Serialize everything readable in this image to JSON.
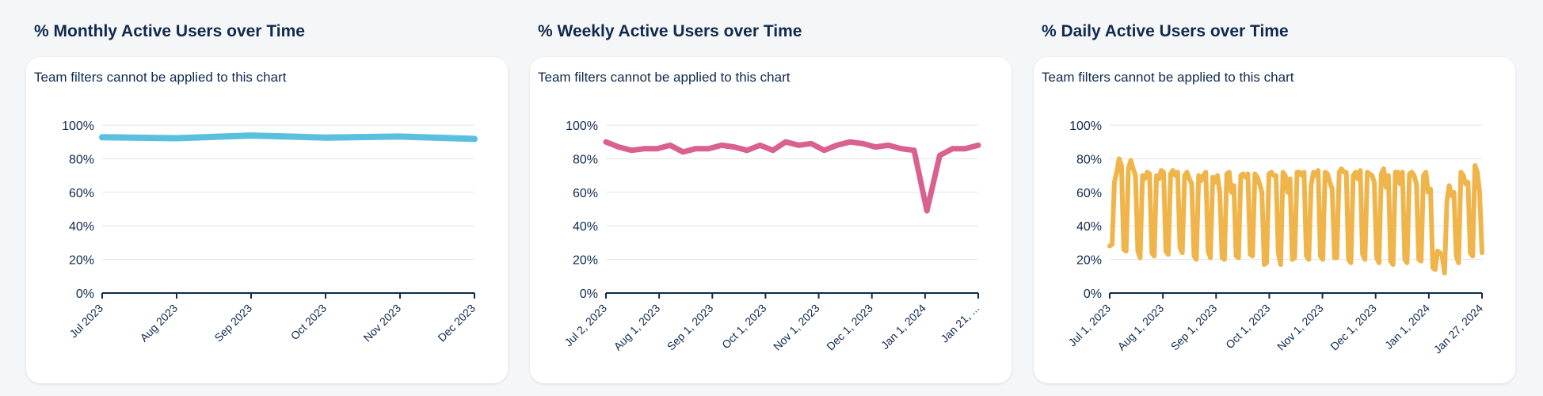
{
  "note": "Team filters cannot be applied to this chart",
  "chart_data": [
    {
      "type": "line",
      "title": "% Monthly Active Users over Time",
      "ylim": [
        0,
        100
      ],
      "y_ticks": [
        "0%",
        "20%",
        "40%",
        "60%",
        "80%",
        "100%"
      ],
      "grid": true,
      "color": "#5bc0e0",
      "x_labels": [
        "Jul 2023",
        "Aug 2023",
        "Sep 2023",
        "Oct 2023",
        "Nov 2023",
        "Dec 2023"
      ],
      "values": [
        92.8,
        92.2,
        93.8,
        92.6,
        93.2,
        91.8
      ]
    },
    {
      "type": "line",
      "title": "% Weekly Active Users over Time",
      "ylim": [
        0,
        100
      ],
      "y_ticks": [
        "0%",
        "20%",
        "40%",
        "60%",
        "80%",
        "100%"
      ],
      "grid": true,
      "color": "#d9618f",
      "x_labels": [
        "Jul 2, 2023",
        "Aug 1, 2023",
        "Sep 1, 2023",
        "Oct 1, 2023",
        "Nov 1, 2023",
        "Dec 1, 2023",
        "Jan 1, 2024",
        "Jan 21, ..."
      ],
      "values": [
        90,
        87,
        85,
        86,
        86,
        88,
        84,
        86,
        86,
        88,
        87,
        85,
        88,
        85,
        90,
        88,
        89,
        85,
        88,
        90,
        89,
        87,
        88,
        86,
        85,
        49,
        82,
        86,
        86,
        88
      ]
    },
    {
      "type": "line",
      "title": "% Daily Active Users over Time",
      "ylim": [
        0,
        100
      ],
      "y_ticks": [
        "0%",
        "20%",
        "40%",
        "60%",
        "80%",
        "100%"
      ],
      "grid": true,
      "color": "#f0b54a",
      "x_labels": [
        "Jul 1, 2023",
        "Aug 1, 2023",
        "Sep 1, 2023",
        "Oct 1, 2023",
        "Nov 1, 2023",
        "Dec 1, 2023",
        "Jan 1, 2024",
        "Jan 27, 2024"
      ],
      "values": [
        28,
        29,
        66,
        72,
        80,
        76,
        26,
        25,
        74,
        79,
        74,
        70,
        25,
        21,
        70,
        68,
        72,
        71,
        24,
        22,
        70,
        68,
        73,
        72,
        25,
        23,
        71,
        73,
        70,
        72,
        27,
        24,
        70,
        72,
        68,
        65,
        22,
        20,
        70,
        67,
        70,
        72,
        25,
        21,
        69,
        66,
        70,
        60,
        21,
        20,
        71,
        72,
        60,
        64,
        22,
        21,
        70,
        71,
        69,
        71,
        23,
        22,
        71,
        69,
        65,
        60,
        17,
        18,
        71,
        72,
        70,
        70,
        24,
        17,
        72,
        70,
        60,
        68,
        20,
        21,
        72,
        72,
        70,
        72,
        22,
        20,
        64,
        72,
        70,
        73,
        22,
        20,
        72,
        71,
        66,
        62,
        21,
        21,
        72,
        74,
        72,
        72,
        20,
        18,
        70,
        72,
        68,
        73,
        23,
        20,
        72,
        71,
        70,
        66,
        21,
        18,
        71,
        74,
        63,
        70,
        19,
        17,
        72,
        72,
        65,
        72,
        20,
        18,
        71,
        72,
        70,
        65,
        20,
        19,
        70,
        72,
        60,
        62,
        15,
        14,
        25,
        24,
        22,
        12,
        55,
        64,
        58,
        60,
        22,
        18,
        72,
        70,
        65,
        66,
        24,
        22,
        76,
        72,
        60,
        24
      ]
    }
  ]
}
